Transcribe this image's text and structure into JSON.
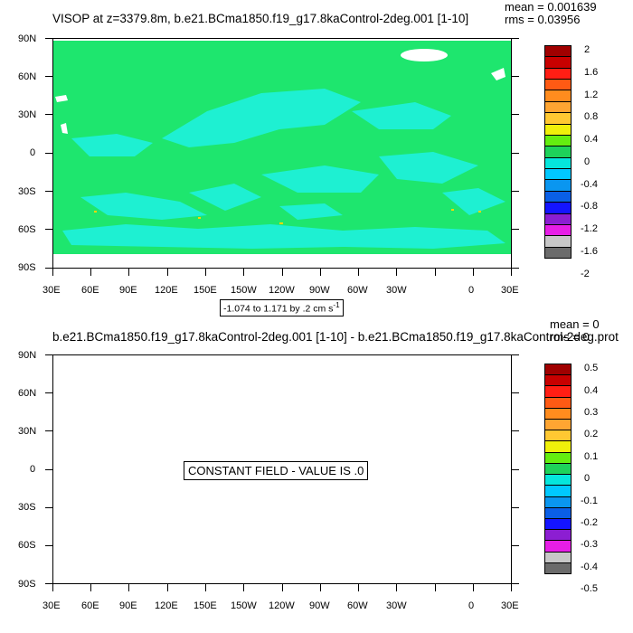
{
  "panel1": {
    "title": "VISOP at z=3379.8m, b.e21.BCma1850.f19_g17.8kaControl-2deg.001 [1-10]",
    "mean": "mean = 0.001639",
    "rms": "rms = 0.03956",
    "range_label": "-1.074 to 1.171 by .2 cm s",
    "range_unit_sup": "-1",
    "colorbar_labels": [
      "2",
      "1.6",
      "1.2",
      "0.8",
      "0.4",
      "0",
      "-0.4",
      "-0.8",
      "-1.2",
      "-1.6",
      "-2"
    ]
  },
  "panel2": {
    "title": "b.e21.BCma1850.f19_g17.8kaControl-2deg.001 [1-10] - b.e21.BCma1850.f19_g17.8kaControl-2deg.prot",
    "mean": "mean = 0",
    "rms": "rms = 0",
    "constant_label": "CONSTANT FIELD - VALUE IS .0",
    "colorbar_labels": [
      "0.5",
      "0.4",
      "0.3",
      "0.2",
      "0.1",
      "0",
      "-0.1",
      "-0.2",
      "-0.3",
      "-0.4",
      "-0.5"
    ]
  },
  "axes": {
    "lat_labels": [
      "90N",
      "60N",
      "30N",
      "0",
      "30S",
      "60S",
      "90S"
    ],
    "lon_labels": [
      "30E",
      "60E",
      "90E",
      "120E",
      "150E",
      "150W",
      "120W",
      "90W",
      "60W",
      "30W",
      "0",
      "30E"
    ]
  },
  "colors": {
    "palette": [
      "#6b6b6b",
      "#c7c7c7",
      "#e61ee6",
      "#8c1ed2",
      "#1414ff",
      "#0a5fe6",
      "#0a96f0",
      "#00c8ff",
      "#05e6dc",
      "#1ed25a",
      "#64ee10",
      "#f0f00a",
      "#ffc832",
      "#ffa532",
      "#ff8c1e",
      "#ff5a14",
      "#ff1e14",
      "#c80000",
      "#a00000"
    ],
    "field_main": "#1ee66e",
    "field_neg": "#1ef0d2",
    "field_pos": "#ffd700"
  },
  "chart_data": [
    {
      "type": "heatmap",
      "title": "VISOP at z=3379.8m, b.e21.BCma1850.f19_g17.8kaControl-2deg.001 [1-10]",
      "mean": 0.001639,
      "rms": 0.03956,
      "range": [
        -1.074,
        1.171
      ],
      "contour_interval": 0.2,
      "units": "cm s-1",
      "colorbar": [
        -2,
        -1.6,
        -1.2,
        -0.8,
        -0.4,
        0,
        0.4,
        0.8,
        1.2,
        1.6,
        2
      ],
      "lon_range": [
        30,
        390
      ],
      "lat_range": [
        -90,
        90
      ]
    },
    {
      "type": "heatmap",
      "title": "b.e21.BCma1850.f19_g17.8kaControl-2deg.001 [1-10] - b.e21.BCma1850.f19_g17.8kaControl-2deg.prot",
      "mean": 0,
      "rms": 0,
      "constant_value": 0,
      "colorbar": [
        -0.5,
        -0.4,
        -0.3,
        -0.2,
        -0.1,
        0,
        0.1,
        0.2,
        0.3,
        0.4,
        0.5
      ],
      "lon_range": [
        30,
        390
      ],
      "lat_range": [
        -90,
        90
      ]
    }
  ]
}
